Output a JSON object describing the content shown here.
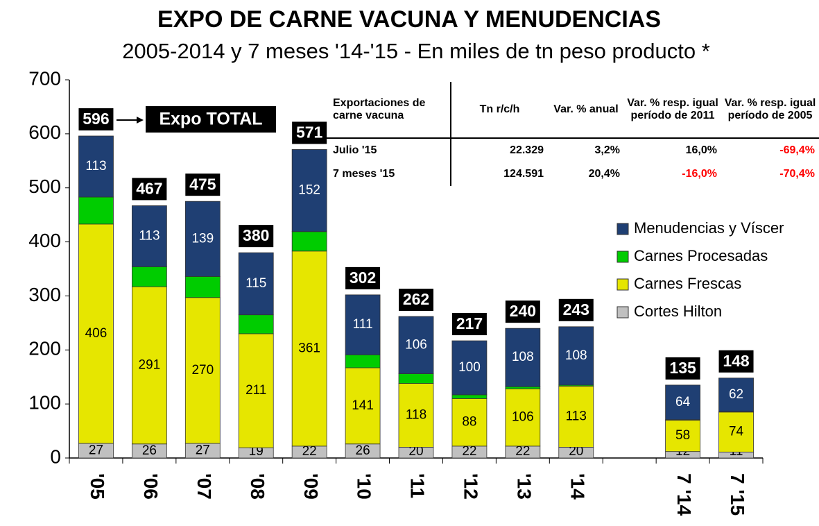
{
  "chart_data": {
    "type": "stacked_bar",
    "title": "EXPO DE CARNE VACUNA Y MENUDENCIAS",
    "subtitle": "2005-2014 y 7 meses '14-'15 - En miles de tn peso producto *",
    "categories": [
      "'05",
      "'06",
      "'07",
      "'08",
      "'09",
      "'10",
      "'11",
      "'12",
      "'13",
      "'14",
      null,
      "7 '14",
      "7 '15"
    ],
    "series": [
      {
        "name": "Cortes Hilton",
        "color": "#c0c0c0",
        "data_labels": true,
        "values": [
          27,
          26,
          27,
          19,
          22,
          26,
          20,
          22,
          22,
          20,
          null,
          12,
          11
        ]
      },
      {
        "name": "Carnes Frescas",
        "color": "#e6e600",
        "data_labels": true,
        "values": [
          406,
          291,
          270,
          211,
          361,
          141,
          118,
          88,
          106,
          113,
          null,
          58,
          74
        ]
      },
      {
        "name": "Carnes Procesadas",
        "color": "#00cc00",
        "data_labels": false,
        "values": [
          50,
          37,
          39,
          35,
          36,
          24,
          18,
          7,
          4,
          2,
          null,
          1,
          1
        ]
      },
      {
        "name": "Menudencias y Víscer",
        "color": "#1f3f73",
        "data_labels": true,
        "values": [
          113,
          113,
          139,
          115,
          152,
          111,
          106,
          100,
          108,
          108,
          null,
          64,
          62
        ]
      }
    ],
    "totals": [
      596,
      467,
      475,
      380,
      571,
      302,
      262,
      217,
      240,
      243,
      null,
      135,
      148
    ],
    "ylim": [
      0,
      700
    ],
    "yticks": [
      0,
      100,
      200,
      300,
      400,
      500,
      600,
      700
    ],
    "annotation": "Expo TOTAL",
    "legend": "right"
  },
  "table": {
    "header": [
      "Exportaciones de carne vacuna",
      "Tn r/c/h",
      "Var. % anual",
      "Var. % resp. igual período de 2011",
      "Var. % resp. igual período de 2005"
    ],
    "rows": [
      [
        "Julio '15",
        "22.329",
        "3,2%",
        "16,0%",
        "-69,4%"
      ],
      [
        "7 meses '15",
        "124.591",
        "20,4%",
        "-16,0%",
        "-70,4%"
      ]
    ],
    "negative_color": "#ff0000"
  }
}
